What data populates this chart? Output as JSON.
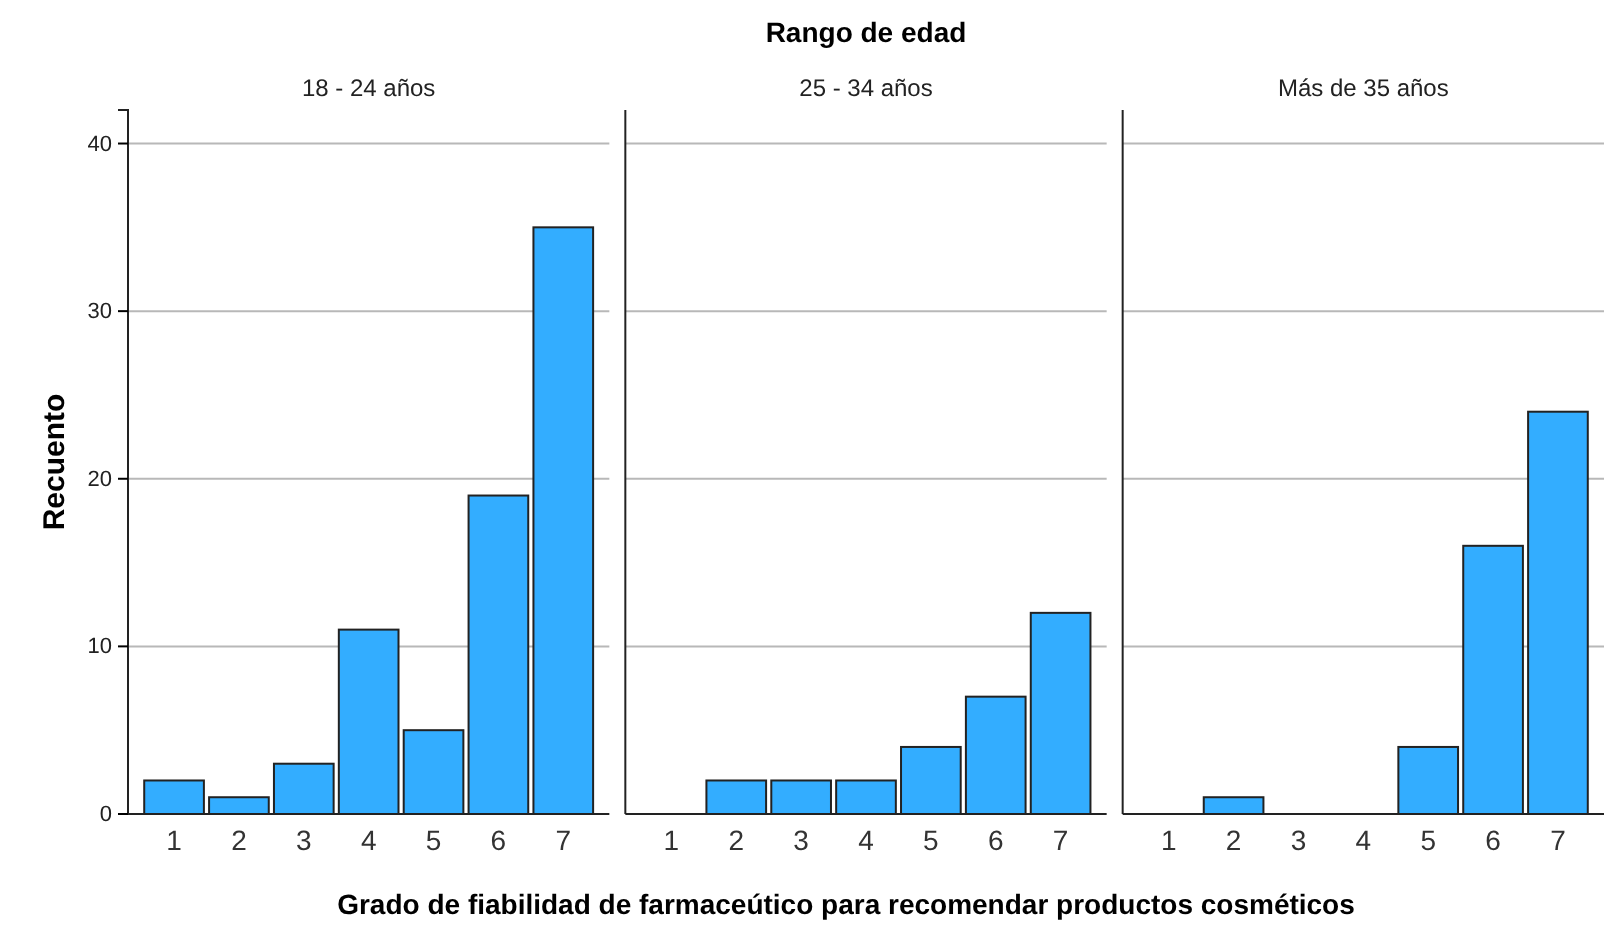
{
  "chart_data": [
    {
      "type": "bar",
      "title": "18 - 24 años",
      "ylabel": "Recuento",
      "categories": [
        "1",
        "2",
        "3",
        "4",
        "5",
        "6",
        "7"
      ],
      "values": [
        2,
        1,
        3,
        11,
        5,
        19,
        35
      ],
      "color": "#33adff",
      "ylim": [
        0,
        42
      ],
      "yticks": [
        0,
        10,
        20,
        30,
        40
      ],
      "grid": "y"
    },
    {
      "type": "bar",
      "title": "25 - 34 años",
      "xlabel": "Grado de fiabilidad de farmaceútico para recomendar productos cosméticos",
      "annotations": [
        "Rango de edad"
      ],
      "categories": [
        "1",
        "2",
        "3",
        "4",
        "5",
        "6",
        "7"
      ],
      "values": [
        0,
        2,
        2,
        2,
        4,
        7,
        12
      ],
      "color": "#33adff",
      "ylim": [
        0,
        42
      ],
      "yticks": [
        0,
        10,
        20,
        30,
        40
      ],
      "grid": "y",
      "tick_labels": "x"
    },
    {
      "type": "bar",
      "title": "Más de 35 años",
      "categories": [
        "1",
        "2",
        "3",
        "4",
        "5",
        "6",
        "7"
      ],
      "values": [
        0,
        1,
        0,
        0,
        4,
        16,
        24
      ],
      "color": "#33adff",
      "ylim": [
        0,
        42
      ],
      "yticks": [
        0,
        10,
        20,
        30,
        40
      ],
      "grid": "y",
      "tick_labels": "x"
    }
  ]
}
